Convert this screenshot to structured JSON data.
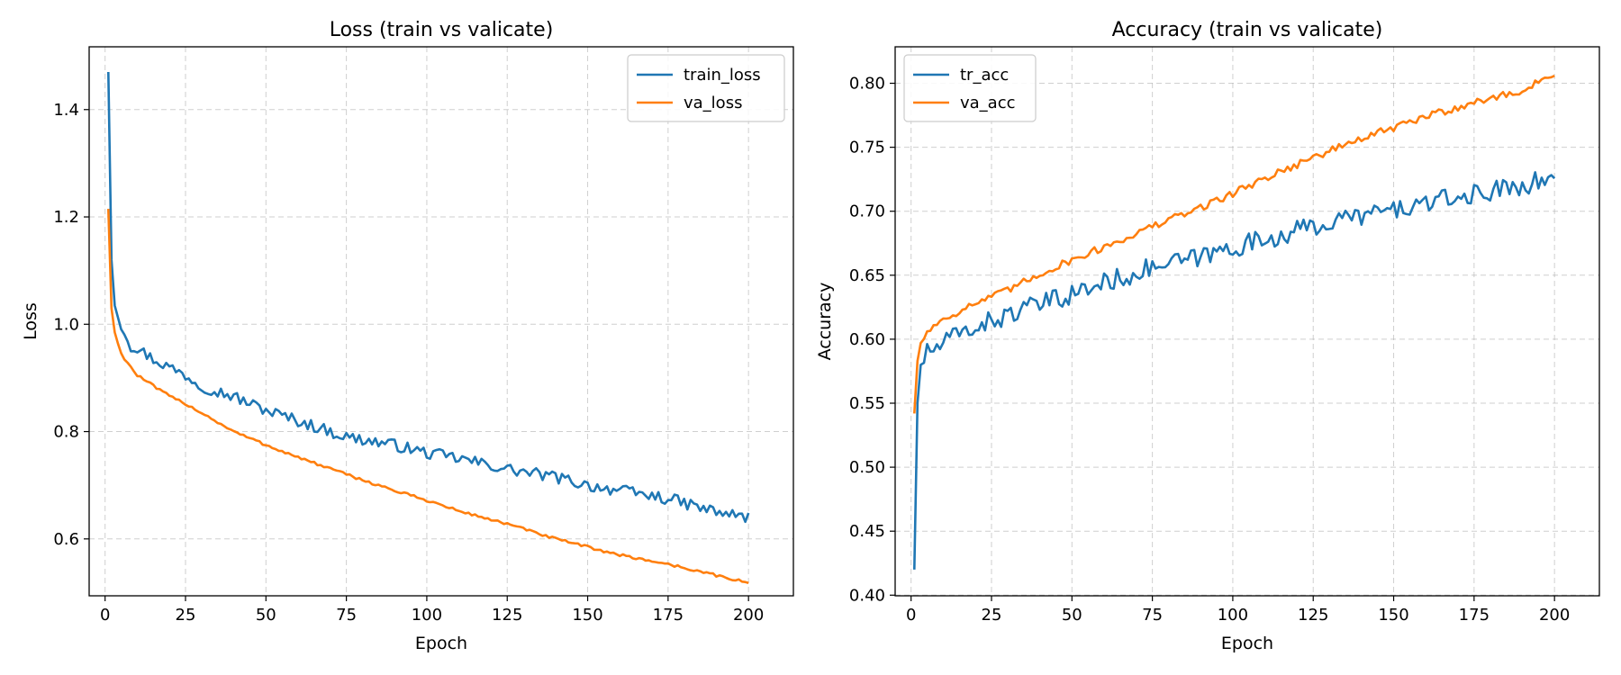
{
  "chart_data": [
    {
      "type": "line",
      "title": "Loss (train vs valicate)",
      "xlabel": "Epoch",
      "ylabel": "Loss",
      "xlim": [
        -4.95,
        213.95
      ],
      "ylim": [
        0.494,
        1.517
      ],
      "xticks": [
        0,
        25,
        50,
        75,
        100,
        125,
        150,
        175,
        200
      ],
      "yticks": [
        0.6,
        0.8,
        1.0,
        1.2,
        1.4
      ],
      "ytick_labels": [
        "0.6",
        "0.8",
        "1.0",
        "1.2",
        "1.4"
      ],
      "grid": true,
      "legend_position": "upper right",
      "anchors": {
        "x": [
          1,
          2,
          3,
          5,
          8,
          10,
          15,
          20,
          25,
          30,
          40,
          50,
          60,
          75,
          90,
          100,
          110,
          125,
          140,
          150,
          160,
          175,
          190,
          200
        ],
        "train_loss": [
          1.47,
          1.12,
          1.035,
          1.0,
          0.96,
          0.955,
          0.935,
          0.92,
          0.905,
          0.885,
          0.865,
          0.84,
          0.82,
          0.79,
          0.775,
          0.76,
          0.75,
          0.73,
          0.715,
          0.7,
          0.69,
          0.675,
          0.65,
          0.64
        ],
        "va_loss": [
          1.215,
          1.03,
          0.985,
          0.945,
          0.92,
          0.905,
          0.885,
          0.866,
          0.852,
          0.835,
          0.8,
          0.775,
          0.752,
          0.72,
          0.69,
          0.672,
          0.652,
          0.628,
          0.6,
          0.585,
          0.57,
          0.553,
          0.532,
          0.518
        ]
      },
      "noise": {
        "train_loss": 0.011,
        "va_loss": 0.0025
      },
      "series": [
        {
          "name": "train_loss",
          "color": "#1f77b4"
        },
        {
          "name": "va_loss",
          "color": "#ff7f0e"
        }
      ]
    },
    {
      "type": "line",
      "title": "Accuracy (train vs valicate)",
      "xlabel": "Epoch",
      "ylabel": "Accuracy",
      "xlim": [
        -4.95,
        213.95
      ],
      "ylim": [
        0.3995,
        0.8285
      ],
      "xticks": [
        0,
        25,
        50,
        75,
        100,
        125,
        150,
        175,
        200
      ],
      "yticks": [
        0.4,
        0.45,
        0.5,
        0.55,
        0.6,
        0.65,
        0.7,
        0.75,
        0.8
      ],
      "ytick_labels": [
        "0.40",
        "0.45",
        "0.50",
        "0.55",
        "0.60",
        "0.65",
        "0.70",
        "0.75",
        "0.80"
      ],
      "grid": true,
      "legend_position": "upper left",
      "anchors": {
        "x": [
          1,
          2,
          3,
          5,
          8,
          10,
          15,
          20,
          25,
          30,
          40,
          50,
          60,
          75,
          90,
          100,
          110,
          125,
          140,
          150,
          160,
          175,
          190,
          200
        ],
        "tr_acc": [
          0.42,
          0.55,
          0.58,
          0.59,
          0.593,
          0.597,
          0.604,
          0.61,
          0.614,
          0.619,
          0.627,
          0.635,
          0.644,
          0.656,
          0.664,
          0.672,
          0.678,
          0.688,
          0.697,
          0.701,
          0.706,
          0.713,
          0.721,
          0.725
        ],
        "va_acc": [
          0.542,
          0.583,
          0.597,
          0.606,
          0.612,
          0.616,
          0.622,
          0.628,
          0.633,
          0.638,
          0.651,
          0.662,
          0.672,
          0.688,
          0.703,
          0.714,
          0.726,
          0.742,
          0.757,
          0.765,
          0.774,
          0.785,
          0.794,
          0.808
        ]
      },
      "noise": {
        "tr_acc": 0.008,
        "va_acc": 0.003
      },
      "series": [
        {
          "name": "tr_acc",
          "color": "#1f77b4"
        },
        {
          "name": "va_acc",
          "color": "#ff7f0e"
        }
      ]
    }
  ]
}
